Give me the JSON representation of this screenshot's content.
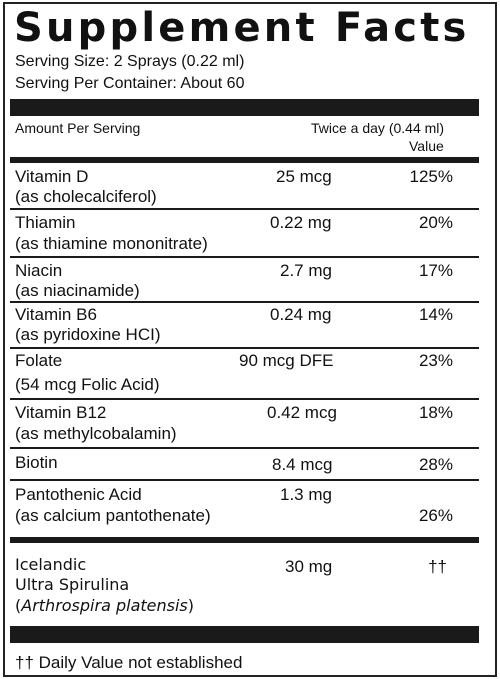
{
  "title": "Supplement Facts",
  "serving_size": "Serving Size: 2 Sprays (0.22 ml)",
  "servings_per_container": "Serving Per Container: About 60",
  "header": {
    "amount_per_serving": "Amount Per  Serving",
    "dose": "Twice a day (0.44 ml)",
    "value": "Value"
  },
  "rows": [
    {
      "name": "Vitamin D",
      "form": "(as cholecalciferol)",
      "amount": "25 mcg",
      "dv": "125%"
    },
    {
      "name": "Thiamin",
      "form": "(as thiamine mononitrate)",
      "amount": "0.22 mg",
      "dv": "20%"
    },
    {
      "name": "Niacin",
      "form": "(as niacinamide)",
      "amount": "2.7 mg",
      "dv": "17%"
    },
    {
      "name": "Vitamin B6",
      "form": "(as pyridoxine HCI)",
      "amount": "0.24 mg",
      "dv": "14%"
    },
    {
      "name": "Folate",
      "form": "(54 mcg Folic Acid)",
      "amount": "90 mcg DFE",
      "dv": "23%"
    },
    {
      "name": "Vitamin B12",
      "form": "(as methylcobalamin)",
      "amount": "0.42 mcg",
      "dv": "18%"
    },
    {
      "name": "Biotin",
      "form": "",
      "amount": "8.4 mcg",
      "dv": "28%"
    },
    {
      "name": "Pantothenic Acid",
      "form": "(as calcium pantothenate)",
      "amount": "1.3 mg",
      "dv": "26%"
    }
  ],
  "spirulina": {
    "line1": "Icelandic",
    "line2": "Ultra Spirulina",
    "paren_open": "(",
    "latin": "Arthrospira platensis",
    "paren_close": ")",
    "amount": "30 mg",
    "dv": "††"
  },
  "footnote": "†† Daily Value not established"
}
